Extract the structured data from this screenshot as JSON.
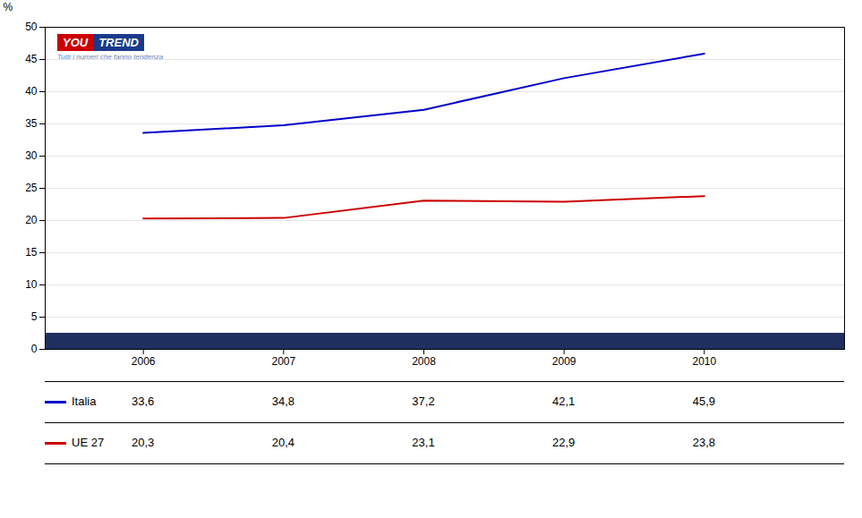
{
  "chart_data": {
    "type": "line",
    "x": [
      2006,
      2007,
      2008,
      2009,
      2010
    ],
    "xlim": [
      2005.3,
      2011.0
    ],
    "xticks": [
      2006,
      2007,
      2008,
      2009,
      2010
    ],
    "ylim": [
      0,
      50
    ],
    "yticks": [
      0,
      5,
      10,
      15,
      20,
      25,
      30,
      35,
      40,
      45,
      50
    ],
    "ylabel": "%",
    "grid": true,
    "series": [
      {
        "name": "Italia",
        "color": "#0000CC",
        "values": [
          33.6,
          34.8,
          37.2,
          42.1,
          45.9
        ],
        "value_labels": [
          "33,6",
          "34,8",
          "37,2",
          "42,1",
          "45,9"
        ]
      },
      {
        "name": "UE 27",
        "color": "#CC0000",
        "values": [
          20.3,
          20.4,
          23.1,
          22.9,
          23.8
        ],
        "value_labels": [
          "20,3",
          "20,4",
          "23,1",
          "22,9",
          "23,8"
        ]
      }
    ],
    "base_bar": {
      "value": 2.5,
      "color": "#1f3060"
    },
    "annotations": [
      {
        "text": "YOU",
        "color": "#CC0000"
      },
      {
        "text": "TREND",
        "color": "#1a3a8a"
      },
      {
        "text": "Tutti i numeri che fanno tendenza",
        "color": "#6688bb"
      }
    ]
  }
}
